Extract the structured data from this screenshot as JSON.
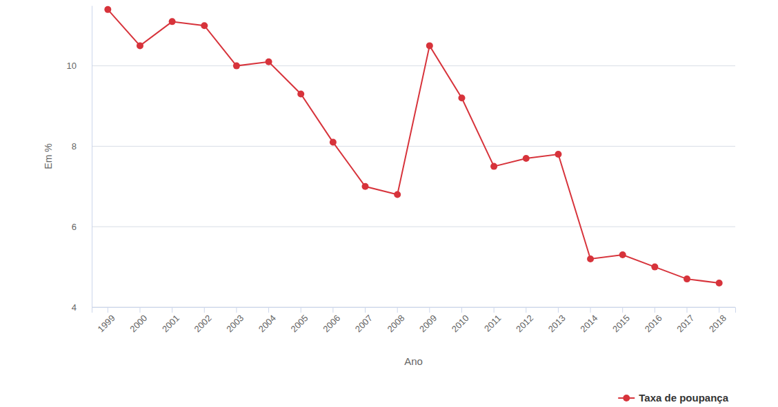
{
  "chart_data": {
    "type": "line",
    "x_label": "Ano",
    "y_label": "Em %",
    "categories": [
      "1999",
      "2000",
      "2001",
      "2002",
      "2003",
      "2004",
      "2005",
      "2006",
      "2007",
      "2008",
      "2009",
      "2010",
      "2011",
      "2012",
      "2013",
      "2014",
      "2015",
      "2016",
      "2017",
      "2018"
    ],
    "series": [
      {
        "name": "Taxa de poupança",
        "color": "#d7333b",
        "marker": "circle",
        "line_style": "solid",
        "values": [
          11.4,
          10.5,
          11.1,
          11.0,
          10.0,
          10.1,
          9.3,
          8.1,
          7.0,
          6.8,
          10.5,
          9.2,
          7.5,
          7.7,
          7.8,
          5.2,
          5.3,
          5.0,
          4.7,
          4.6
        ]
      }
    ],
    "ylim": [
      4,
      11.5
    ],
    "yticks": [
      4,
      6,
      8,
      10
    ],
    "grid": true,
    "legend": "bottom-right"
  }
}
